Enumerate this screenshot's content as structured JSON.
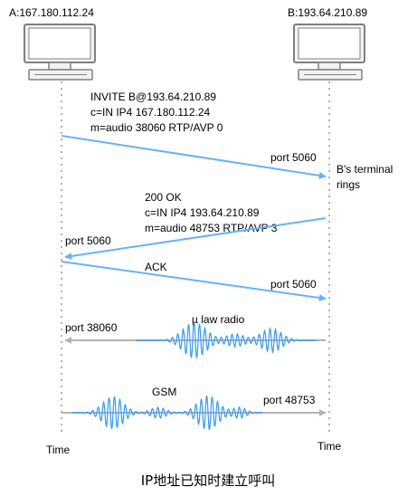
{
  "hosts": {
    "a": {
      "label": "A:167.180.112.24"
    },
    "b": {
      "label": "B:193.64.210.89"
    }
  },
  "messages": {
    "invite": {
      "lines": [
        "INVITE B@193.64.210.89",
        "c=IN IP4 167.180.112.24",
        "m=audio 38060 RTP/AVP 0"
      ],
      "port": "port 5060"
    },
    "b_note": {
      "lines": [
        "B's terminal",
        "rings"
      ]
    },
    "ok": {
      "lines": [
        "200 OK",
        "c=IN IP4  193.64.210.89",
        "m=audio 48753 RTP/AVP 3"
      ],
      "port": "port 5060"
    },
    "ack": {
      "label": "ACK",
      "port": "port 5060"
    },
    "mulaw": {
      "label": "µ law radio",
      "port": "port 38060"
    },
    "gsm": {
      "label": "GSM",
      "port": "port 48753"
    }
  },
  "timeline": {
    "a_label": "Time",
    "b_label": "Time"
  },
  "caption": "IP地址已知时建立呼叫",
  "colors": {
    "signal": "#66b2ff",
    "media": "#b3b3b3",
    "wave": "#3399ff",
    "monitor_body": "#f2f2f2",
    "monitor_stroke": "#808080"
  }
}
